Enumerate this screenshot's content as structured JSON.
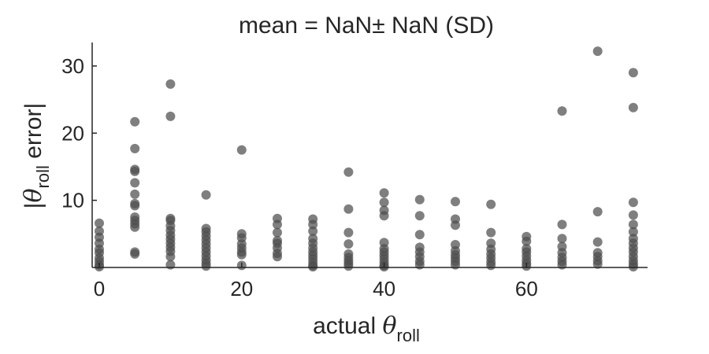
{
  "chart_data": {
    "type": "scatter",
    "title": "mean = NaN± NaN (SD)",
    "xlabel": {
      "prefix": "actual ",
      "symbol": "θ",
      "subscript": "roll"
    },
    "ylabel": {
      "open": "|",
      "symbol": "θ",
      "subscript": "roll",
      "suffix": " error|"
    },
    "xlim": [
      -1,
      77
    ],
    "ylim": [
      0,
      33.5
    ],
    "xticks": [
      0,
      20,
      40,
      60
    ],
    "yticks": [
      10,
      20,
      30
    ],
    "grid": false,
    "legend": "none",
    "marker_color": "#4d4d4d",
    "axis_color": "#262626",
    "points": [
      {
        "x": 0,
        "y": 6.6
      },
      {
        "x": 0,
        "y": 5.4
      },
      {
        "x": 0,
        "y": 4.5
      },
      {
        "x": 0,
        "y": 3.6
      },
      {
        "x": 0,
        "y": 2.7
      },
      {
        "x": 0,
        "y": 2.2
      },
      {
        "x": 0,
        "y": 1.4
      },
      {
        "x": 0,
        "y": 0.9
      },
      {
        "x": 0,
        "y": 0.4
      },
      {
        "x": 0,
        "y": 0.1
      },
      {
        "x": 5,
        "y": 21.7
      },
      {
        "x": 5,
        "y": 17.7
      },
      {
        "x": 5,
        "y": 14.6
      },
      {
        "x": 5,
        "y": 14.3
      },
      {
        "x": 5,
        "y": 12.6
      },
      {
        "x": 5,
        "y": 10.9
      },
      {
        "x": 5,
        "y": 9.5
      },
      {
        "x": 5,
        "y": 9.2
      },
      {
        "x": 5,
        "y": 7.5
      },
      {
        "x": 5,
        "y": 7.0
      },
      {
        "x": 5,
        "y": 6.5
      },
      {
        "x": 5,
        "y": 6.0
      },
      {
        "x": 5,
        "y": 2.3
      },
      {
        "x": 5,
        "y": 2.0
      },
      {
        "x": 10,
        "y": 27.3
      },
      {
        "x": 10,
        "y": 22.5
      },
      {
        "x": 10,
        "y": 7.3
      },
      {
        "x": 10,
        "y": 7.0
      },
      {
        "x": 10,
        "y": 6.2
      },
      {
        "x": 10,
        "y": 5.5
      },
      {
        "x": 10,
        "y": 4.8
      },
      {
        "x": 10,
        "y": 4.2
      },
      {
        "x": 10,
        "y": 3.6
      },
      {
        "x": 10,
        "y": 3.0
      },
      {
        "x": 10,
        "y": 2.4
      },
      {
        "x": 10,
        "y": 1.6
      },
      {
        "x": 10,
        "y": 0.4
      },
      {
        "x": 15,
        "y": 10.8
      },
      {
        "x": 15,
        "y": 5.8
      },
      {
        "x": 15,
        "y": 5.3
      },
      {
        "x": 15,
        "y": 4.7
      },
      {
        "x": 15,
        "y": 4.1
      },
      {
        "x": 15,
        "y": 3.5
      },
      {
        "x": 15,
        "y": 2.9
      },
      {
        "x": 15,
        "y": 2.3
      },
      {
        "x": 15,
        "y": 1.7
      },
      {
        "x": 15,
        "y": 1.1
      },
      {
        "x": 15,
        "y": 0.6
      },
      {
        "x": 15,
        "y": 0.2
      },
      {
        "x": 20,
        "y": 17.5
      },
      {
        "x": 20,
        "y": 5.0
      },
      {
        "x": 20,
        "y": 4.4
      },
      {
        "x": 20,
        "y": 3.5
      },
      {
        "x": 20,
        "y": 2.9
      },
      {
        "x": 20,
        "y": 2.3
      },
      {
        "x": 20,
        "y": 1.9
      },
      {
        "x": 20,
        "y": 0.3
      },
      {
        "x": 25,
        "y": 7.3
      },
      {
        "x": 25,
        "y": 6.4
      },
      {
        "x": 25,
        "y": 5.2
      },
      {
        "x": 25,
        "y": 4.0
      },
      {
        "x": 25,
        "y": 3.6
      },
      {
        "x": 25,
        "y": 2.9
      },
      {
        "x": 25,
        "y": 2.1
      },
      {
        "x": 25,
        "y": 1.6
      },
      {
        "x": 30,
        "y": 7.2
      },
      {
        "x": 30,
        "y": 6.4
      },
      {
        "x": 30,
        "y": 5.4
      },
      {
        "x": 30,
        "y": 4.3
      },
      {
        "x": 30,
        "y": 3.6
      },
      {
        "x": 30,
        "y": 2.9
      },
      {
        "x": 30,
        "y": 2.3
      },
      {
        "x": 30,
        "y": 1.8
      },
      {
        "x": 30,
        "y": 1.3
      },
      {
        "x": 30,
        "y": 0.8
      },
      {
        "x": 30,
        "y": 0.3
      },
      {
        "x": 30,
        "y": 0.1
      },
      {
        "x": 35,
        "y": 14.2
      },
      {
        "x": 35,
        "y": 8.7
      },
      {
        "x": 35,
        "y": 5.2
      },
      {
        "x": 35,
        "y": 3.5
      },
      {
        "x": 35,
        "y": 2.0
      },
      {
        "x": 35,
        "y": 1.5
      },
      {
        "x": 35,
        "y": 1.0
      },
      {
        "x": 35,
        "y": 0.6
      },
      {
        "x": 35,
        "y": 0.2
      },
      {
        "x": 40,
        "y": 11.1
      },
      {
        "x": 40,
        "y": 9.7
      },
      {
        "x": 40,
        "y": 8.5
      },
      {
        "x": 40,
        "y": 7.7
      },
      {
        "x": 40,
        "y": 3.7
      },
      {
        "x": 40,
        "y": 2.8
      },
      {
        "x": 40,
        "y": 2.3
      },
      {
        "x": 40,
        "y": 1.8
      },
      {
        "x": 40,
        "y": 1.3
      },
      {
        "x": 40,
        "y": 0.8
      },
      {
        "x": 40,
        "y": 0.3
      },
      {
        "x": 40,
        "y": 0.1
      },
      {
        "x": 45,
        "y": 10.1
      },
      {
        "x": 45,
        "y": 7.7
      },
      {
        "x": 45,
        "y": 4.9
      },
      {
        "x": 45,
        "y": 3.0
      },
      {
        "x": 45,
        "y": 2.3
      },
      {
        "x": 45,
        "y": 1.6
      },
      {
        "x": 45,
        "y": 0.9
      },
      {
        "x": 45,
        "y": 0.4
      },
      {
        "x": 50,
        "y": 9.8
      },
      {
        "x": 50,
        "y": 7.2
      },
      {
        "x": 50,
        "y": 6.3
      },
      {
        "x": 50,
        "y": 3.4
      },
      {
        "x": 50,
        "y": 2.5
      },
      {
        "x": 50,
        "y": 1.9
      },
      {
        "x": 50,
        "y": 1.4
      },
      {
        "x": 50,
        "y": 0.9
      },
      {
        "x": 50,
        "y": 0.4
      },
      {
        "x": 55,
        "y": 9.4
      },
      {
        "x": 55,
        "y": 5.2
      },
      {
        "x": 55,
        "y": 3.6
      },
      {
        "x": 55,
        "y": 2.7
      },
      {
        "x": 55,
        "y": 2.0
      },
      {
        "x": 55,
        "y": 1.4
      },
      {
        "x": 55,
        "y": 0.8
      },
      {
        "x": 55,
        "y": 0.3
      },
      {
        "x": 60,
        "y": 4.6
      },
      {
        "x": 60,
        "y": 3.9
      },
      {
        "x": 60,
        "y": 2.8
      },
      {
        "x": 60,
        "y": 2.3
      },
      {
        "x": 60,
        "y": 1.7
      },
      {
        "x": 60,
        "y": 1.1
      },
      {
        "x": 60,
        "y": 0.6
      },
      {
        "x": 60,
        "y": 0.2
      },
      {
        "x": 65,
        "y": 23.3
      },
      {
        "x": 65,
        "y": 6.4
      },
      {
        "x": 65,
        "y": 4.3
      },
      {
        "x": 65,
        "y": 3.1
      },
      {
        "x": 65,
        "y": 2.2
      },
      {
        "x": 65,
        "y": 1.5
      },
      {
        "x": 65,
        "y": 0.9
      },
      {
        "x": 65,
        "y": 0.4
      },
      {
        "x": 70,
        "y": 32.2
      },
      {
        "x": 70,
        "y": 8.3
      },
      {
        "x": 70,
        "y": 3.8
      },
      {
        "x": 70,
        "y": 2.2
      },
      {
        "x": 70,
        "y": 1.6
      },
      {
        "x": 70,
        "y": 1.0
      },
      {
        "x": 70,
        "y": 0.5
      },
      {
        "x": 75,
        "y": 29.0
      },
      {
        "x": 75,
        "y": 23.8
      },
      {
        "x": 75,
        "y": 9.7
      },
      {
        "x": 75,
        "y": 7.8
      },
      {
        "x": 75,
        "y": 6.4
      },
      {
        "x": 75,
        "y": 5.3
      },
      {
        "x": 75,
        "y": 4.3
      },
      {
        "x": 75,
        "y": 3.6
      },
      {
        "x": 75,
        "y": 2.9
      },
      {
        "x": 75,
        "y": 2.3
      },
      {
        "x": 75,
        "y": 1.6
      },
      {
        "x": 75,
        "y": 1.0
      },
      {
        "x": 75,
        "y": 0.5
      },
      {
        "x": 75,
        "y": 0.1
      }
    ]
  }
}
